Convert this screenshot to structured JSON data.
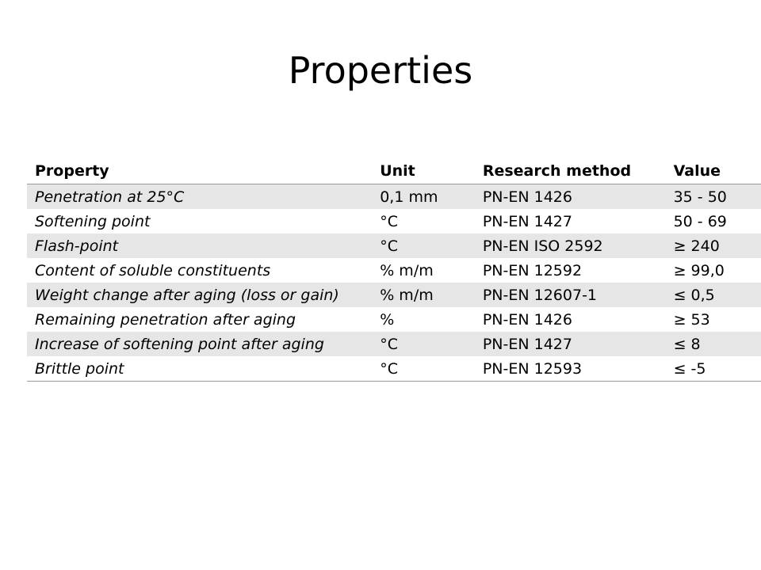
{
  "header": {
    "title": "Properties"
  },
  "table": {
    "columns": [
      "Property",
      "Unit",
      "Research method",
      "Value"
    ],
    "rows": [
      [
        "Penetration at 25°C",
        "0,1 mm",
        "PN-EN 1426",
        "35 - 50"
      ],
      [
        "Softening point",
        "°C",
        "PN-EN 1427",
        "50 - 69"
      ],
      [
        "Flash-point",
        "°C",
        "PN-EN ISO 2592",
        "≥ 240"
      ],
      [
        "Content of soluble constituents",
        "% m/m",
        "PN-EN 12592",
        "≥ 99,0"
      ],
      [
        "Weight change  after aging (loss or gain)",
        "% m/m",
        "PN-EN 12607-1",
        "≤ 0,5"
      ],
      [
        "Remaining penetration after aging",
        "%",
        "PN-EN 1426",
        "≥ 53"
      ],
      [
        "Increase of softening point after aging",
        "°C",
        "PN-EN 1427",
        "≤ 8"
      ],
      [
        "Brittle point",
        "°C",
        "PN-EN 12593",
        "≤ -5"
      ]
    ]
  }
}
